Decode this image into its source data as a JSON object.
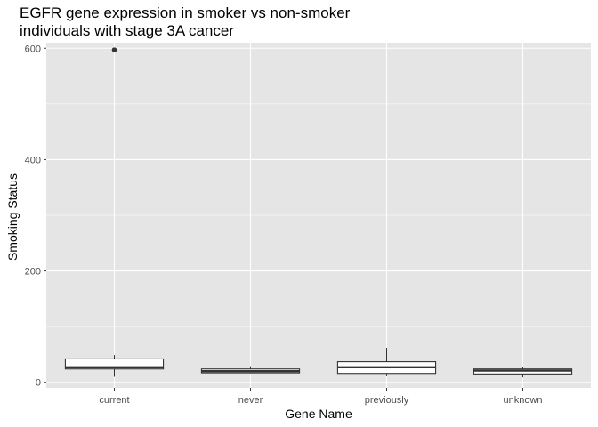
{
  "chart_data": {
    "type": "boxplot",
    "title_lines": [
      "EGFR gene expression in smoker vs non-smoker",
      "individuals with stage 3A cancer"
    ],
    "xlabel": "Gene Name",
    "ylabel": "Smoking Status",
    "categories": [
      "current",
      "never",
      "previously",
      "unknown"
    ],
    "ylim": [
      -10,
      610
    ],
    "yticks": [
      0,
      200,
      400,
      600
    ],
    "grid": true,
    "boxes": [
      {
        "category": "current",
        "whisker_low": 10,
        "q1": 24,
        "median": 27,
        "q3": 42,
        "whisker_high": 49,
        "outliers": [
          597
        ]
      },
      {
        "category": "never",
        "whisker_low": 16,
        "q1": 17,
        "median": 20,
        "q3": 24,
        "whisker_high": 29,
        "outliers": []
      },
      {
        "category": "previously",
        "whisker_low": 11,
        "q1": 16,
        "median": 27,
        "q3": 37,
        "whisker_high": 62,
        "outliers": []
      },
      {
        "category": "unknown",
        "whisker_low": 9,
        "q1": 15,
        "median": 21,
        "q3": 24,
        "whisker_high": 28,
        "outliers": []
      }
    ],
    "colors": {
      "panel": "#e5e5e5",
      "grid": "#ffffff",
      "box_fill": "#ffffff",
      "box_line": "#333333",
      "text": "#4d4d4d"
    }
  }
}
